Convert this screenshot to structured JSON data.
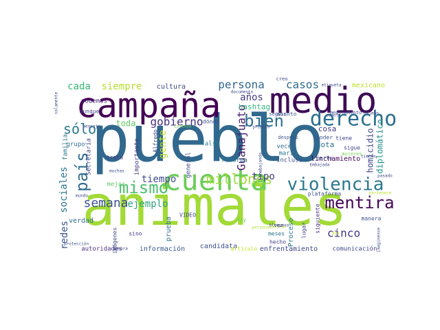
{
  "words": [
    {
      "text": "pueblo",
      "color": "#31688e"
    },
    {
      "text": "animales",
      "color": "#a2da37"
    },
    {
      "text": "campaña",
      "color": "#440154"
    },
    {
      "text": "medio",
      "color": "#3e0b57"
    },
    {
      "text": "cuenta",
      "color": "#6ccd5a"
    },
    {
      "text": "violencia",
      "color": "#2a788e"
    },
    {
      "text": "derecho",
      "color": "#2b6f8e"
    },
    {
      "text": "mentira",
      "color": "#440558"
    },
    {
      "text": "bien",
      "color": "#2c6f8e"
    },
    {
      "text": "mismo",
      "color": "#4ac16d"
    },
    {
      "text": "millones",
      "color": "#9fda3a"
    },
    {
      "text": "país",
      "color": "#2f6c8e"
    },
    {
      "text": "sólo",
      "color": "#2b748e"
    },
    {
      "text": "semana",
      "color": "#3b528b"
    },
    {
      "text": "persona",
      "color": "#31688e"
    },
    {
      "text": "gobierno",
      "color": "#462f7e"
    },
    {
      "text": "casos",
      "color": "#2e6e8e"
    },
    {
      "text": "siempre",
      "color": "#b5de2b"
    },
    {
      "text": "cada",
      "color": "#37b578"
    },
    {
      "text": "cinco",
      "color": "#453882"
    },
    {
      "text": "Guanajuato",
      "color": "#48196b"
    },
    {
      "text": "tiempo",
      "color": "#3d4d8a"
    },
    {
      "text": "ejemplo",
      "color": "#2ea37b"
    },
    {
      "text": "tipo",
      "color": "#443b84"
    },
    {
      "text": "redes",
      "color": "#3a548c"
    },
    {
      "text": "sociales",
      "color": "#2a768e"
    },
    {
      "text": "años",
      "color": "#433e85"
    },
    {
      "text": "gente",
      "color": "#b8de29"
    },
    {
      "text": "toda",
      "color": "#5ec962"
    },
    {
      "text": "diplomático",
      "color": "#20928c"
    },
    {
      "text": "homicidio",
      "color": "#3f4788"
    },
    {
      "text": "hashtag",
      "color": "#2fb47c"
    },
    {
      "text": "nota",
      "color": "#2c728e"
    },
    {
      "text": "cosa",
      "color": "#443983"
    },
    {
      "text": "linchamiento",
      "color": "#440154"
    },
    {
      "text": "información",
      "color": "#38598c"
    },
    {
      "text": "enfrentamiento",
      "color": "#3f4889"
    },
    {
      "text": "mexicano",
      "color": "#bddf26"
    },
    {
      "text": "cultura",
      "color": "#3e4a89"
    },
    {
      "text": "verdad",
      "color": "#2e6e8e"
    },
    {
      "text": "candidata",
      "color": "#3b528b"
    },
    {
      "text": "comunicación",
      "color": "#3f4889"
    },
    {
      "text": "autoridades",
      "color": "#472c7a"
    },
    {
      "text": "Proceso",
      "color": "#2a788e"
    },
    {
      "text": "prueba",
      "color": "#2d718e"
    },
    {
      "text": "importante",
      "color": "#453882"
    },
    {
      "text": "podemos",
      "color": "#482475"
    },
    {
      "text": "grupo",
      "color": "#2c728e"
    },
    {
      "text": "Secretaría",
      "color": "#404688"
    },
    {
      "text": "familia",
      "color": "#2a788e"
    },
    {
      "text": "reforma",
      "color": "#2c728e"
    },
    {
      "text": "general",
      "color": "#3e4989"
    },
    {
      "text": "falso",
      "color": "#26828e"
    },
    {
      "text": "dónde",
      "color": "#3c508b"
    },
    {
      "text": "trata",
      "color": "#453781"
    },
    {
      "text": "Alfredo",
      "color": "#3d4e8a"
    },
    {
      "text": "mejor",
      "color": "#5ec962"
    },
    {
      "text": "marzo",
      "color": "#2c728e"
    },
    {
      "text": "veces",
      "color": "#2f6b8e"
    },
    {
      "text": "incluso",
      "color": "#3b528b"
    },
    {
      "text": "parte",
      "color": "#3e4a89"
    },
    {
      "text": "sigue",
      "color": "#404688"
    },
    {
      "text": "poder",
      "color": "#39568c"
    },
    {
      "text": "lugar",
      "color": "#3f4889"
    },
    {
      "text": "meses",
      "color": "#2b758e"
    },
    {
      "text": "siguiente",
      "color": "#46327e"
    },
    {
      "text": "plataforma",
      "color": "#3b528b"
    },
    {
      "text": "imágenes",
      "color": "#3e4989"
    },
    {
      "text": "VIDEO",
      "color": "#404588"
    },
    {
      "text": "sino",
      "color": "#443983"
    },
    {
      "text": "Hoy",
      "color": "#7ad151"
    },
    {
      "text": "hecho",
      "color": "#404688"
    },
    {
      "text": "asunto",
      "color": "#3b528b"
    },
    {
      "text": "aunque",
      "color": "#3f4788"
    },
    {
      "text": "tiene",
      "color": "#404688"
    },
    {
      "text": "manera",
      "color": "#3b528b"
    },
    {
      "text": "medicamento",
      "color": "#3e4a89"
    },
    {
      "text": "seguir",
      "color": "#3f4889"
    },
    {
      "text": "creo",
      "color": "#3e4a89"
    },
    {
      "text": "después",
      "color": "#3b528b"
    },
    {
      "text": "solamente",
      "color": "#3e4989"
    },
    {
      "text": "muchas",
      "color": "#3e4989"
    },
    {
      "text": "mensaje",
      "color": "#3f4788"
    },
    {
      "text": "mundo",
      "color": "#404688"
    },
    {
      "text": "protección",
      "color": "#3b528b"
    },
    {
      "text": "Sonora",
      "color": "#3e4a89"
    },
    {
      "text": "artículo",
      "color": "#bddf26"
    },
    {
      "text": "imaginense",
      "color": "#3e4989"
    },
    {
      "text": "primero",
      "color": "#3e4989"
    },
    {
      "text": "documento",
      "color": "#3e4989"
    },
    {
      "text": "etiqueta",
      "color": "#3e4989"
    },
    {
      "text": "Raimán",
      "color": "#3e4989"
    },
    {
      "text": "Embajada",
      "color": "#3e4989"
    },
    {
      "text": "pasado",
      "color": "#3e4989"
    },
    {
      "text": "mujeres",
      "color": "#7ad151"
    },
    {
      "text": "Latinus",
      "color": "#7ad151"
    },
    {
      "text": "cuanto",
      "color": "#3e4989"
    },
    {
      "text": "trabajando",
      "color": "#3e4989"
    },
    {
      "text": "vez",
      "color": "#3e4989"
    },
    {
      "text": "buscar",
      "color": "#bddf26"
    },
    {
      "text": "pertenece",
      "color": "#bddf26"
    },
    {
      "text": "personas",
      "color": "#b5de2b"
    },
    {
      "text": "bloqueos",
      "color": "#3e4989"
    },
    {
      "text": "tienen",
      "color": "#3e4989"
    },
    {
      "text": "día",
      "color": "#bddf26"
    }
  ]
}
